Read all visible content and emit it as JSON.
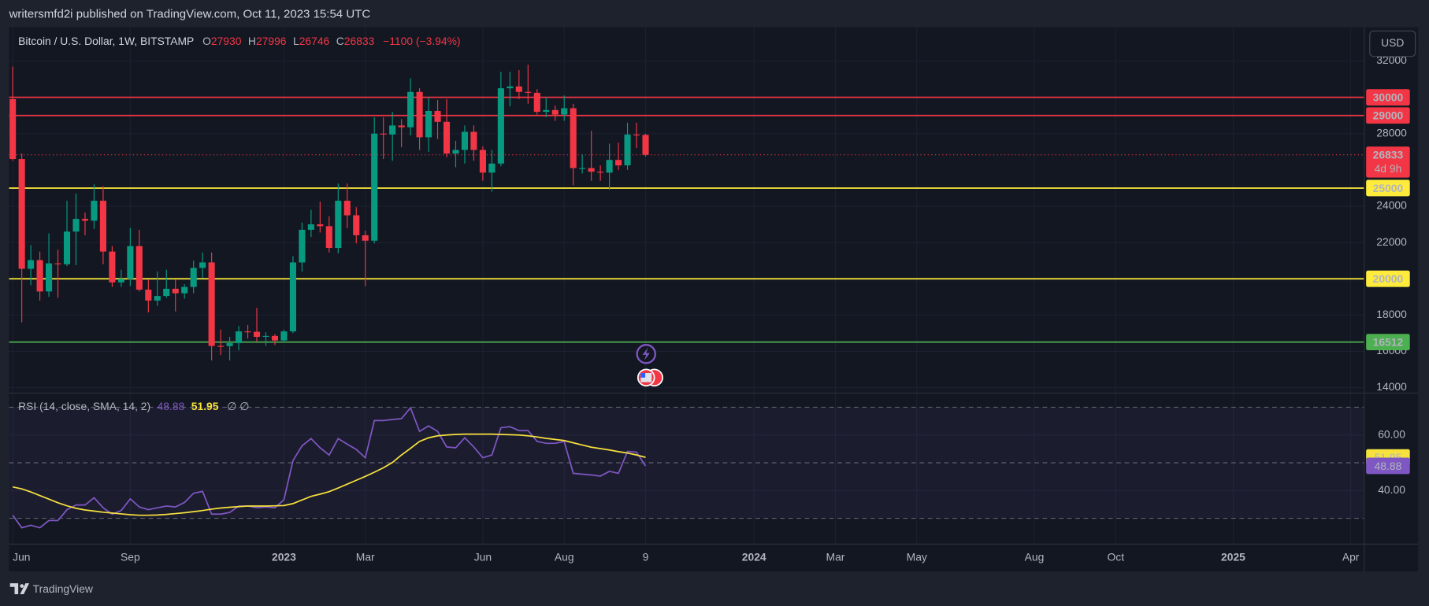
{
  "header": {
    "publisher": "writersmfd2i published on TradingView.com, Oct 11, 2023 15:54 UTC",
    "currency": "USD"
  },
  "footer": {
    "brand": "TradingView"
  },
  "chart_data": [
    {
      "type": "candlestick",
      "title": "Bitcoin / U.S. Dollar, 1W, BITSTAMP",
      "ohlc_prefixes": [
        "O",
        "H",
        "L",
        "C"
      ],
      "change": "−1100 (−3.94%)",
      "countdown": "4d 9h",
      "up_color": "#089981",
      "down_color": "#f23645",
      "x": [
        0,
        1,
        2,
        3,
        4,
        5,
        6,
        7,
        8,
        9,
        10,
        11,
        12,
        13,
        14,
        15,
        16,
        17,
        18,
        19,
        20,
        21,
        22,
        23,
        24,
        25,
        26,
        27,
        28,
        29,
        30,
        31,
        32,
        33,
        34,
        35,
        36,
        37,
        38,
        39,
        40,
        41,
        42,
        43,
        44,
        45,
        46,
        47,
        48,
        49,
        50,
        51,
        52,
        53,
        54,
        55,
        56,
        57,
        58,
        59,
        60,
        61,
        62,
        63,
        64,
        65,
        66,
        67,
        68,
        69,
        70
      ],
      "open": [
        29900,
        26600,
        20550,
        21030,
        19300,
        20850,
        20800,
        22600,
        23300,
        23200,
        24300,
        21500,
        19800,
        19990,
        21800,
        19400,
        18800,
        19050,
        19450,
        19200,
        19550,
        20600,
        20900,
        16300,
        16290,
        16450,
        17100,
        17080,
        16800,
        16850,
        16600,
        17100,
        20900,
        22700,
        23000,
        22900,
        21700,
        24300,
        23500,
        22400,
        22100,
        28000,
        27950,
        28450,
        28350,
        30300,
        27800,
        29250,
        28650,
        26900,
        27100,
        28100,
        27100,
        25850,
        26350,
        30500,
        30600,
        30300,
        30250,
        29200,
        29300,
        29050,
        29400,
        26100,
        26100,
        25900,
        25850,
        26550,
        26250,
        27950,
        27930
      ],
      "high": [
        31700,
        26900,
        21850,
        21500,
        22500,
        21600,
        24300,
        24700,
        23650,
        25200,
        25100,
        21800,
        20500,
        22800,
        22700,
        19950,
        20400,
        20500,
        19950,
        19700,
        21000,
        21450,
        21450,
        17200,
        16800,
        17400,
        17450,
        18400,
        17050,
        16950,
        17200,
        21250,
        23100,
        23800,
        24250,
        23450,
        25250,
        25250,
        23950,
        22650,
        28900,
        28900,
        29200,
        28800,
        31050,
        30500,
        30000,
        29850,
        29900,
        27600,
        28450,
        28450,
        27300,
        27100,
        31400,
        31400,
        31500,
        31800,
        30450,
        30000,
        29550,
        30100,
        29650,
        26850,
        28150,
        26250,
        27450,
        27500,
        28600,
        28600,
        27996
      ],
      "low": [
        26500,
        17600,
        19650,
        18800,
        19000,
        18950,
        20700,
        20750,
        22400,
        22750,
        20800,
        19550,
        19550,
        19600,
        19300,
        18150,
        18500,
        18950,
        18200,
        18900,
        19200,
        20050,
        15500,
        15800,
        15500,
        16050,
        16700,
        16550,
        16300,
        16350,
        16500,
        17000,
        20400,
        22300,
        22550,
        21450,
        21400,
        22800,
        21950,
        19600,
        21950,
        26600,
        26500,
        27250,
        27900,
        27100,
        27000,
        27700,
        26700,
        26150,
        26350,
        26500,
        25400,
        24800,
        26200,
        29500,
        29900,
        29650,
        29050,
        28900,
        28700,
        28700,
        25150,
        25800,
        25400,
        25400,
        24900,
        26000,
        26000,
        27200,
        26746
      ],
      "close": [
        26600,
        20550,
        21030,
        19300,
        20850,
        20800,
        22600,
        23300,
        23200,
        24300,
        21500,
        19800,
        19990,
        21800,
        19400,
        18800,
        19050,
        19450,
        19200,
        19550,
        20600,
        20900,
        16300,
        16290,
        16450,
        17100,
        17080,
        16800,
        16850,
        16600,
        17100,
        20900,
        22700,
        23000,
        22900,
        21700,
        24300,
        23500,
        22400,
        22100,
        28000,
        27950,
        28450,
        28350,
        30300,
        27800,
        29250,
        28650,
        26900,
        27100,
        28100,
        27100,
        25850,
        26350,
        30500,
        30600,
        30300,
        30250,
        29200,
        29300,
        29050,
        29400,
        26100,
        26100,
        25900,
        25850,
        26550,
        26250,
        27950,
        27930,
        26833
      ],
      "xlim": [
        -0.4,
        149.5
      ],
      "xticks": [
        {
          "value": 0,
          "label": "Jun"
        },
        {
          "value": 13,
          "label": "Sep"
        },
        {
          "value": 30,
          "label": "2023"
        },
        {
          "value": 39,
          "label": "Mar"
        },
        {
          "value": 52,
          "label": "Jun"
        },
        {
          "value": 61,
          "label": "Aug"
        },
        {
          "value": 70,
          "label": "9"
        },
        {
          "value": 82,
          "label": "2024"
        },
        {
          "value": 91,
          "label": "Mar"
        },
        {
          "value": 100,
          "label": "May"
        },
        {
          "value": 113,
          "label": "Aug"
        },
        {
          "value": 122,
          "label": "Oct"
        },
        {
          "value": 135,
          "label": "2025"
        },
        {
          "value": 148,
          "label": "Apr"
        }
      ],
      "ylim": [
        13700,
        33860
      ],
      "yticks": [
        14000,
        16000,
        18000,
        22000,
        24000,
        28000,
        32000
      ],
      "grid": true,
      "levels": [
        {
          "value": 30000,
          "color": "#f23645"
        },
        {
          "value": 29000,
          "color": "#f23645"
        },
        {
          "value": 25000,
          "color": "#ffeb3b"
        },
        {
          "value": 20000,
          "color": "#ffeb3b"
        },
        {
          "value": 16512,
          "color": "#4caf50"
        }
      ]
    },
    {
      "type": "line",
      "title": "RSI (14, close, SMA, 14, 2)",
      "suffix": "∅ ∅",
      "ylim": [
        20.7,
        75.1
      ],
      "yticks": [
        {
          "value": 60,
          "label": "60.00"
        },
        {
          "value": 40,
          "label": "40.00"
        }
      ],
      "guides": [
        70,
        50,
        30
      ],
      "series": [
        {
          "color": "#7e57c2",
          "values": [
            31.1,
            26.6,
            27.5,
            26.6,
            29.2,
            29.2,
            33.1,
            34.8,
            34.8,
            37.4,
            33.8,
            31.5,
            32.8,
            37.0,
            34.1,
            33.1,
            33.8,
            34.4,
            34.1,
            35.7,
            39.0,
            39.7,
            31.5,
            31.5,
            32.1,
            34.4,
            34.4,
            33.8,
            34.1,
            33.8,
            36.7,
            50.8,
            56.1,
            58.7,
            55.4,
            52.8,
            58.7,
            56.7,
            54.8,
            51.8,
            65.2,
            65.2,
            65.6,
            65.9,
            69.8,
            61.3,
            63.3,
            61.3,
            55.7,
            55.4,
            59.0,
            55.7,
            51.8,
            52.8,
            62.6,
            63.0,
            61.6,
            61.6,
            57.7,
            57.0,
            57.0,
            57.7,
            46.2,
            45.9,
            45.6,
            45.2,
            46.9,
            46.2,
            54.1,
            53.8,
            48.88
          ]
        },
        {
          "color": "#f7e23d",
          "values": [
            41.3,
            40.6,
            39.5,
            38.2,
            36.9,
            35.6,
            34.5,
            33.6,
            33.0,
            32.6,
            32.2,
            31.9,
            31.6,
            31.3,
            31.1,
            31.1,
            31.2,
            31.4,
            31.7,
            32.0,
            32.4,
            32.8,
            33.3,
            33.7,
            34.0,
            34.2,
            34.4,
            34.4,
            34.4,
            34.5,
            34.6,
            35.3,
            36.6,
            37.9,
            38.7,
            39.6,
            40.9,
            42.3,
            43.7,
            45.1,
            46.6,
            48.2,
            50.1,
            52.8,
            55.2,
            57.7,
            59.0,
            59.7,
            60.0,
            60.2,
            60.3,
            60.3,
            60.3,
            60.3,
            60.2,
            60.1,
            60.0,
            59.7,
            59.3,
            58.8,
            58.4,
            58.0,
            57.2,
            56.4,
            55.6,
            55.1,
            54.6,
            54.0,
            53.5,
            52.8,
            51.95
          ]
        }
      ]
    }
  ]
}
